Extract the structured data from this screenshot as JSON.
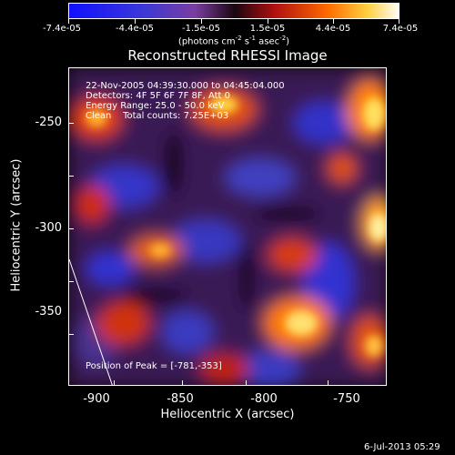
{
  "colorbar": {
    "tick_labels": [
      "-7.4e-05",
      "-4.4e-05",
      "-1.5e-05",
      "1.5e-05",
      "4.4e-05",
      "7.4e-05"
    ],
    "unit_text": "(photons cm",
    "unit_parts": [
      "(photons cm",
      "-2",
      " s",
      "-1",
      " asec",
      "-2",
      ")"
    ]
  },
  "title": "Reconstructed RHESSI Image",
  "info": {
    "time": "22-Nov-2005 04:39:30.000 to 04:45:04.000",
    "detectors": "Detectors: 4F 5F 6F 7F 8F, Att 0",
    "energy": "Energy Range: 25.0 - 50.0 keV",
    "clean": "Clean    Total counts: 7.25E+03"
  },
  "peak": "Position of Peak = [-781,-353]",
  "axes": {
    "x_title": "Heliocentric X (arcsec)",
    "y_title": "Heliocentric Y (arcsec)",
    "x_ticks": [
      "-900",
      "-850",
      "-800",
      "-750"
    ],
    "y_ticks": [
      "-250",
      "-300",
      "-350"
    ]
  },
  "datestamp": "6-Jul-2013 05:29",
  "colors": {
    "background": "#000000",
    "colormap": [
      "#0000ff",
      "#5a2ec8",
      "#7a3a9a",
      "#2a0a1a",
      "#c01010",
      "#ff6a00",
      "#ffd24a",
      "#ffffff"
    ]
  }
}
